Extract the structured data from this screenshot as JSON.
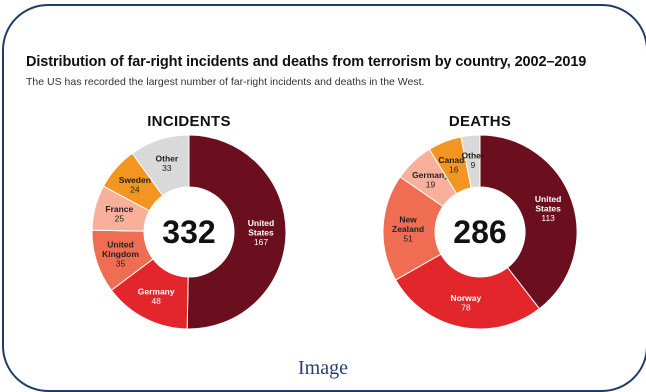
{
  "caption": "Image",
  "chart_data": [
    {
      "type": "pie",
      "title": "Distribution of far-right incidents and deaths from terrorism by country, 2002–2019",
      "subtitle": "The US has recorded the largest number of far-right incidents and deaths in the West.",
      "donut_title": "INCIDENTS",
      "total": "332",
      "slices": [
        {
          "label": "United States",
          "value": 167,
          "color": "#6b0f1e"
        },
        {
          "label": "Germany",
          "value": 48,
          "color": "#e2262c"
        },
        {
          "label": "United Kingdom",
          "value": 35,
          "color": "#ef6d52"
        },
        {
          "label": "France",
          "value": 25,
          "color": "#f8b09a"
        },
        {
          "label": "Sweden",
          "value": 24,
          "color": "#f39521"
        },
        {
          "label": "Other",
          "value": 33,
          "color": "#d9d9d9"
        }
      ]
    },
    {
      "type": "pie",
      "donut_title": "DEATHS",
      "total": "286",
      "slices": [
        {
          "label": "United States",
          "value": 113,
          "color": "#6b0f1e"
        },
        {
          "label": "Norway",
          "value": 78,
          "color": "#e2262c"
        },
        {
          "label": "New Zealand",
          "value": 51,
          "color": "#ef6d52"
        },
        {
          "label": "Germany",
          "value": 19,
          "color": "#f8b09a"
        },
        {
          "label": "Canada",
          "value": 16,
          "color": "#f39521"
        },
        {
          "label": "Other",
          "value": 9,
          "color": "#d9d9d9"
        }
      ]
    }
  ]
}
